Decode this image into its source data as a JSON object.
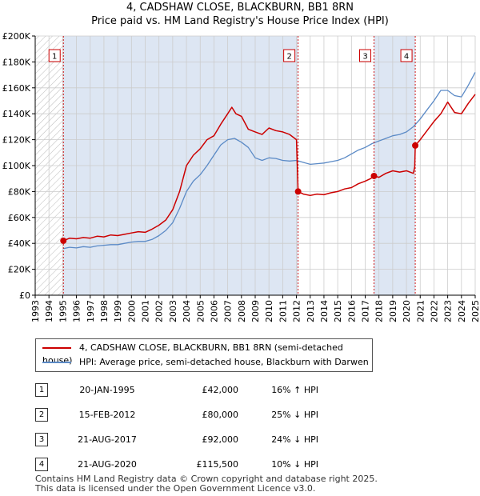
{
  "chart_data": {
    "type": "line",
    "title": "4, CADSHAW CLOSE, BLACKBURN, BB1 8RN",
    "subtitle": "Price paid vs. HM Land Registry's House Price Index (HPI)",
    "xlabel": "",
    "ylabel": "",
    "xlim": [
      1993,
      2025
    ],
    "ylim": [
      0,
      200000
    ],
    "y_ticks": [
      0,
      20000,
      40000,
      60000,
      80000,
      100000,
      120000,
      140000,
      160000,
      180000,
      200000
    ],
    "y_tick_labels": [
      "£0",
      "£20K",
      "£40K",
      "£60K",
      "£80K",
      "£100K",
      "£120K",
      "£140K",
      "£160K",
      "£180K",
      "£200K"
    ],
    "x_ticks": [
      1993,
      1994,
      1995,
      1996,
      1997,
      1998,
      1999,
      2000,
      2001,
      2002,
      2003,
      2004,
      2005,
      2006,
      2007,
      2008,
      2009,
      2010,
      2011,
      2012,
      2013,
      2014,
      2015,
      2016,
      2017,
      2018,
      2019,
      2020,
      2021,
      2022,
      2023,
      2024,
      2025
    ],
    "x_tick_labels": [
      "1993",
      "1994",
      "1995",
      "1996",
      "1997",
      "1998",
      "1999",
      "2000",
      "2001",
      "2002",
      "2003",
      "2004",
      "2005",
      "2006",
      "2007",
      "2008",
      "2009",
      "2010",
      "2011",
      "2012",
      "2013",
      "2014",
      "2015",
      "2016",
      "2017",
      "2018",
      "2019",
      "2020",
      "2021",
      "2022",
      "2023",
      "2024",
      "2025"
    ],
    "grid": true,
    "hatched_until": 1995.05,
    "series": [
      {
        "name": "4, CADSHAW CLOSE, BLACKBURN, BB1 8RN (semi-detached house)",
        "color": "#cc0000",
        "x": [
          1995.05,
          1995.5,
          1996,
          1996.5,
          1997,
          1997.5,
          1998,
          1998.5,
          1999,
          1999.5,
          2000,
          2000.5,
          2001,
          2001.5,
          2002,
          2002.5,
          2003,
          2003.5,
          2004,
          2004.5,
          2005,
          2005.5,
          2006,
          2006.5,
          2007,
          2007.3,
          2007.6,
          2008,
          2008.5,
          2009,
          2009.5,
          2010,
          2010.5,
          2011,
          2011.5,
          2012.0,
          2012.12,
          2012.5,
          2013,
          2013.5,
          2014,
          2014.5,
          2015,
          2015.5,
          2016,
          2016.5,
          2017,
          2017.4,
          2017.64,
          2018,
          2018.5,
          2019,
          2019.5,
          2020,
          2020.5,
          2020.6,
          2020.64,
          2021,
          2021.5,
          2022,
          2022.5,
          2023,
          2023.5,
          2024,
          2024.5,
          2025
        ],
        "y": [
          42000,
          44000,
          43500,
          44500,
          44000,
          45500,
          45000,
          46500,
          46000,
          47000,
          48000,
          49000,
          48500,
          51000,
          54000,
          58000,
          66000,
          80000,
          100000,
          108000,
          113000,
          120000,
          123000,
          132000,
          140000,
          145000,
          140000,
          138000,
          128000,
          126000,
          124000,
          129000,
          127000,
          126000,
          124000,
          120000,
          80000,
          78000,
          77000,
          78000,
          77500,
          79000,
          80000,
          82000,
          83000,
          86000,
          88000,
          90000,
          92000,
          91000,
          94000,
          96000,
          95000,
          96000,
          94000,
          99000,
          115500,
          120000,
          127000,
          134000,
          140000,
          149000,
          141000,
          140000,
          148000,
          155000
        ]
      },
      {
        "name": "HPI: Average price, semi-detached house, Blackburn with Darwen",
        "color": "#5b8ac6",
        "x": [
          1995.05,
          1995.5,
          1996,
          1996.5,
          1997,
          1997.5,
          1998,
          1998.5,
          1999,
          1999.5,
          2000,
          2000.5,
          2001,
          2001.5,
          2002,
          2002.5,
          2003,
          2003.5,
          2004,
          2004.5,
          2005,
          2005.5,
          2006,
          2006.5,
          2007,
          2007.5,
          2008,
          2008.5,
          2009,
          2009.5,
          2010,
          2010.5,
          2011,
          2011.5,
          2012,
          2012.5,
          2013,
          2013.5,
          2014,
          2014.5,
          2015,
          2015.5,
          2016,
          2016.5,
          2017,
          2017.5,
          2018,
          2018.5,
          2019,
          2019.5,
          2020,
          2020.5,
          2021,
          2021.5,
          2022,
          2022.5,
          2023,
          2023.5,
          2024,
          2024.5,
          2025
        ],
        "y": [
          36000,
          37000,
          36500,
          37500,
          37000,
          38000,
          38500,
          39000,
          39000,
          40000,
          41000,
          41500,
          41500,
          43000,
          46000,
          50000,
          56000,
          67000,
          80000,
          88000,
          93000,
          100000,
          108000,
          116000,
          120000,
          121000,
          118000,
          114000,
          106000,
          104000,
          106000,
          105500,
          104000,
          103500,
          104000,
          102500,
          101000,
          101500,
          102000,
          103000,
          104000,
          106000,
          109000,
          112000,
          114000,
          117000,
          119000,
          121000,
          123000,
          124000,
          126000,
          130000,
          136000,
          143000,
          150000,
          158000,
          158000,
          154000,
          153000,
          162000,
          172000
        ]
      }
    ],
    "markers": [
      {
        "label": "1",
        "x": 1995.05,
        "y": 42000
      },
      {
        "label": "2",
        "x": 2012.12,
        "y": 80000
      },
      {
        "label": "3",
        "x": 2017.64,
        "y": 92000
      },
      {
        "label": "4",
        "x": 2020.64,
        "y": 115500
      }
    ],
    "legend": {
      "placement": "below",
      "entries": [
        "4, CADSHAW CLOSE, BLACKBURN, BB1 8RN (semi-detached house)",
        "HPI: Average price, semi-detached house, Blackburn with Darwen"
      ]
    }
  },
  "sales": [
    {
      "num": "1",
      "date": "20-JAN-1995",
      "price": "£42,000",
      "hpi": "16% ↑ HPI"
    },
    {
      "num": "2",
      "date": "15-FEB-2012",
      "price": "£80,000",
      "hpi": "25% ↓ HPI"
    },
    {
      "num": "3",
      "date": "21-AUG-2017",
      "price": "£92,000",
      "hpi": "24% ↓ HPI"
    },
    {
      "num": "4",
      "date": "21-AUG-2020",
      "price": "£115,500",
      "hpi": "10% ↓ HPI"
    }
  ],
  "footer": {
    "line1": "Contains HM Land Registry data © Crown copyright and database right 2025.",
    "line2": "This data is licensed under the Open Government Licence v3.0."
  },
  "colors": {
    "sale_line": "#cc0000",
    "hpi_line": "#5b8ac6",
    "shade": "#dde6f3",
    "grid": "#cccccc"
  }
}
